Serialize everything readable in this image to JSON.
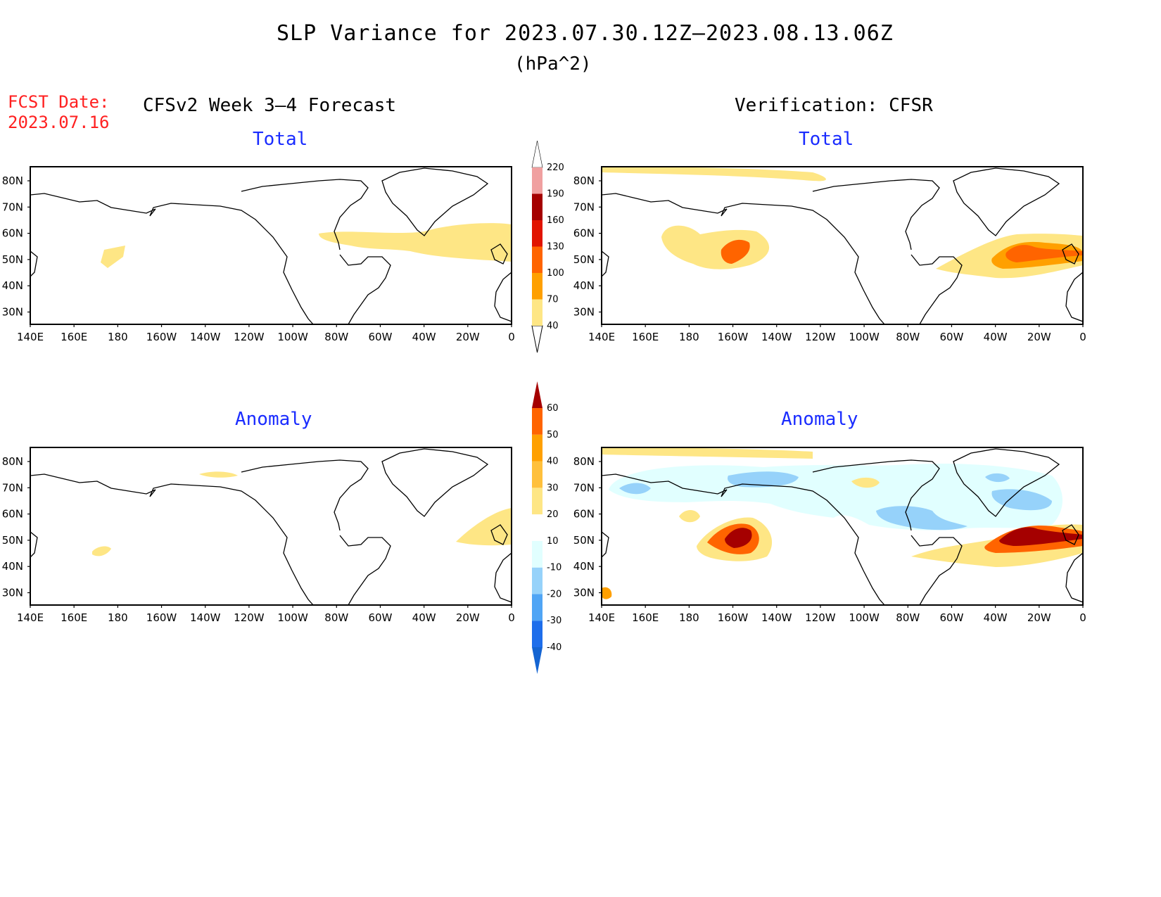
{
  "title": "SLP Variance for 2023.07.30.12Z–2023.08.13.06Z",
  "units": "(hPa^2)",
  "fcst_label": "FCST Date:",
  "fcst_date": "2023.07.16",
  "left_header": "CFSv2 Week 3–4 Forecast",
  "right_header": "Verification: CFSR",
  "panel_titles": {
    "total": "Total",
    "anomaly": "Anomaly"
  },
  "lat_labels": [
    "80N",
    "70N",
    "60N",
    "50N",
    "40N",
    "30N"
  ],
  "lon_labels": [
    "140E",
    "160E",
    "180",
    "160W",
    "140W",
    "120W",
    "100W",
    "80W",
    "60W",
    "40W",
    "20W",
    "0"
  ],
  "colorbar_total": {
    "levels": [
      "40",
      "70",
      "100",
      "130",
      "160",
      "190",
      "220"
    ],
    "colors": [
      "#fee685",
      "#ffa000",
      "#ff6400",
      "#e11400",
      "#a50000",
      "#f0a0a0",
      "#ffdcdc",
      "#ffffff"
    ]
  },
  "colorbar_anomaly": {
    "levels": [
      "-40",
      "-30",
      "-20",
      "-10",
      "10",
      "20",
      "30",
      "40",
      "50",
      "60"
    ],
    "colors": [
      "#1464d2",
      "#1e6eeb",
      "#50a5f5",
      "#96d2fa",
      "#e1ffff",
      "#ffffff",
      "#fee685",
      "#ffc03c",
      "#ffa000",
      "#ff6400",
      "#e11400",
      "#a50000"
    ]
  },
  "colors": {
    "title_red": "#ff2020",
    "subtitle_blue": "#1a2cff"
  }
}
